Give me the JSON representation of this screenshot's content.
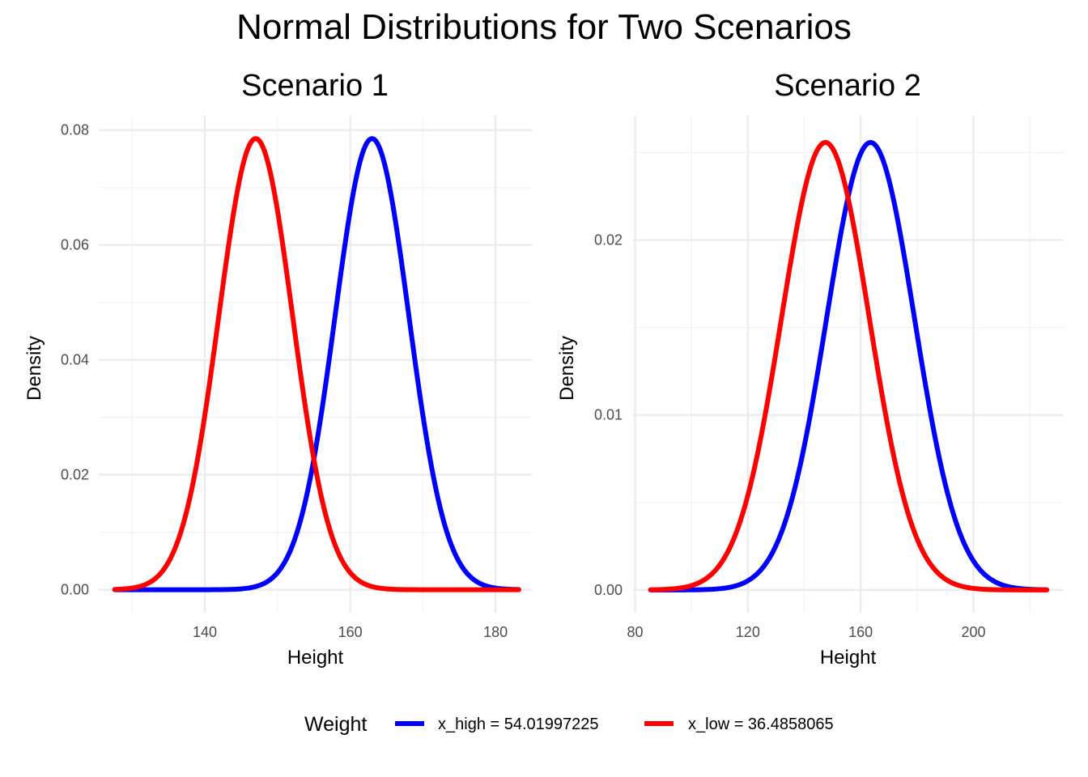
{
  "title": "Normal Distributions for Two Scenarios",
  "legend": {
    "title": "Weight",
    "placement": "bottom",
    "entries": [
      {
        "label": "x_high = 54.01997225",
        "color": "#0000FF"
      },
      {
        "label": "x_low = 36.4858065",
        "color": "#FF0000"
      }
    ]
  },
  "chart_data": [
    {
      "type": "line",
      "title": "Scenario 1",
      "xlabel": "Height",
      "ylabel": "Density",
      "xlim": [
        125.4,
        185.0
      ],
      "ylim": [
        -0.004,
        0.0825
      ],
      "x_ticks": [
        140,
        160,
        180
      ],
      "x_tick_labels": [
        "140",
        "160",
        "180"
      ],
      "y_ticks": [
        0,
        0.02,
        0.04,
        0.06,
        0.08
      ],
      "y_tick_labels": [
        "0.00",
        "0.02",
        "0.04",
        "0.06",
        "0.08"
      ],
      "grid": true,
      "x_range": [
        127.6,
        183.2
      ],
      "series": [
        {
          "name": "x_high = 54.01997225",
          "color": "#0000FF",
          "distribution": "normal",
          "mean": 163.0,
          "sd": 5.08
        },
        {
          "name": "x_low = 36.4858065",
          "color": "#FF0000",
          "distribution": "normal",
          "mean": 147.0,
          "sd": 5.08
        }
      ]
    },
    {
      "type": "line",
      "title": "Scenario 2",
      "xlabel": "Height",
      "ylabel": "Density",
      "xlim": [
        79.0,
        232.0
      ],
      "ylim": [
        -0.0013,
        0.0271
      ],
      "x_ticks": [
        80,
        120,
        160,
        200
      ],
      "x_tick_labels": [
        "80",
        "120",
        "160",
        "200"
      ],
      "y_ticks": [
        0,
        0.01,
        0.02
      ],
      "y_tick_labels": [
        "0.00",
        "0.01",
        "0.02"
      ],
      "grid": true,
      "x_range": [
        85.5,
        226.0
      ],
      "series": [
        {
          "name": "x_high = 54.01997225",
          "color": "#0000FF",
          "distribution": "normal",
          "mean": 163.5,
          "sd": 15.6
        },
        {
          "name": "x_low = 36.4858065",
          "color": "#FF0000",
          "distribution": "normal",
          "mean": 147.5,
          "sd": 15.6
        }
      ]
    }
  ]
}
